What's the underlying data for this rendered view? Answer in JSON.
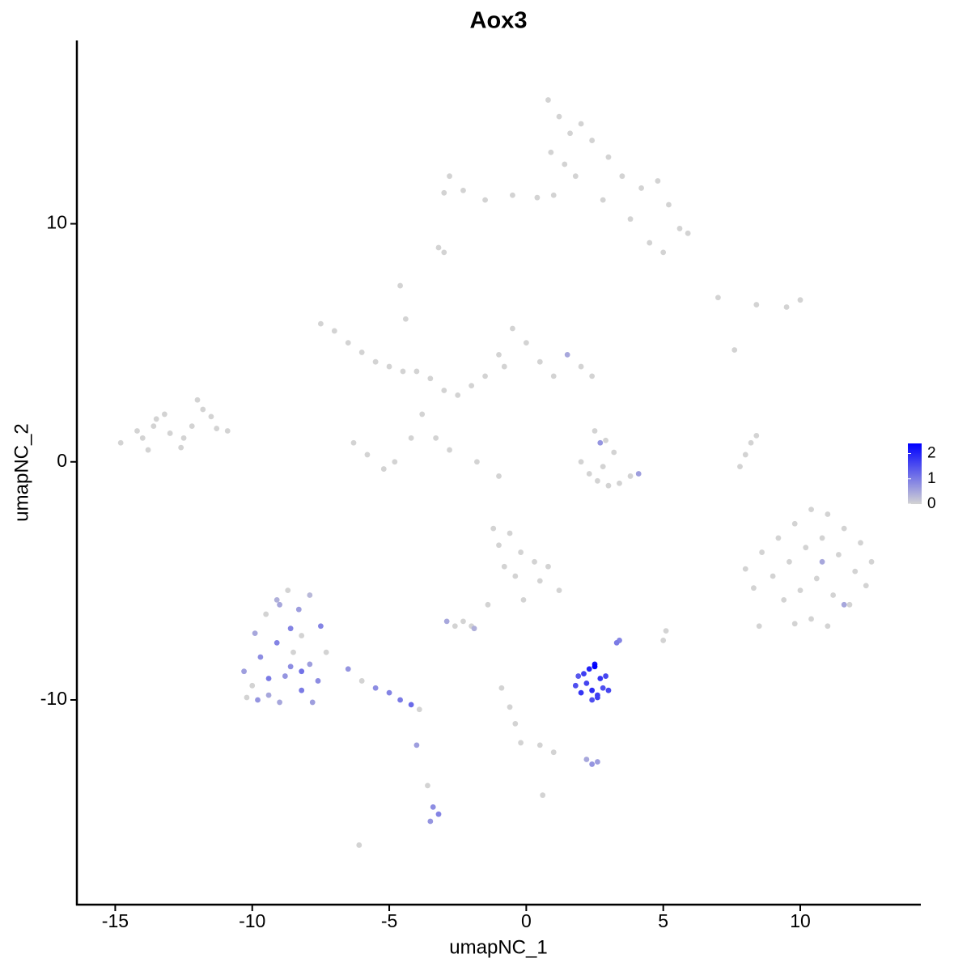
{
  "chart_data": {
    "type": "scatter",
    "title": "Aox3",
    "xlabel": "umapNC_1",
    "ylabel": "umapNC_2",
    "xlim": [
      -16.4,
      14.4
    ],
    "ylim": [
      -18.6,
      17.7
    ],
    "xticks": [
      -15,
      -10,
      -5,
      0,
      5,
      10
    ],
    "yticks": [
      -10,
      0,
      10
    ],
    "color_low": "#d3d3d3",
    "color_high": "#0000ff",
    "clim": [
      0,
      2.4
    ],
    "legend_ticks": [
      0,
      1,
      2
    ],
    "x": [
      -14.8,
      -14.2,
      -13.8,
      -13.5,
      -13.0,
      -12.6,
      -12.2,
      -11.8,
      -11.3,
      -10.9,
      -14.0,
      -13.2,
      -12.5,
      -12.0,
      -11.5,
      -13.6,
      0.8,
      1.2,
      1.6,
      2.0,
      0.9,
      1.4,
      2.4,
      1.8,
      3.0,
      3.5,
      4.2,
      4.8,
      5.2,
      5.6,
      5.9,
      4.5,
      3.8,
      2.8,
      1.0,
      0.4,
      -0.5,
      -1.5,
      -2.3,
      -2.8,
      -3.0,
      5.0,
      -3.0,
      -3.2,
      -7.5,
      -7.0,
      -6.5,
      -6.0,
      -5.5,
      -5.0,
      -4.5,
      -4.0,
      -3.5,
      -3.0,
      -2.5,
      -2.0,
      -1.5,
      -1.0,
      -0.5,
      0,
      0.5,
      1.0,
      1.5,
      2.0,
      2.4,
      -6.3,
      -5.8,
      -5.2,
      -4.8,
      -4.2,
      -3.8,
      -3.3,
      -2.8,
      -1.8,
      -4.6,
      -4.4,
      -1.0,
      -0.8,
      2.0,
      2.3,
      2.6,
      3.0,
      3.4,
      3.8,
      4.1,
      2.7,
      2.5,
      3.2,
      2.9,
      2.8,
      8.0,
      8.6,
      9.2,
      9.8,
      10.4,
      11.0,
      11.6,
      12.2,
      12.6,
      8.3,
      9.0,
      9.6,
      10.2,
      10.8,
      11.4,
      12.0,
      9.4,
      10.0,
      10.6,
      11.2,
      11.8,
      9.8,
      10.4,
      11.0,
      8.5,
      12.4,
      10.8,
      11.6,
      7.0,
      8.4,
      9.5,
      10.0,
      7.6,
      7.8,
      8.0,
      8.2,
      8.4,
      -1.2,
      -1.0,
      -0.6,
      -0.2,
      0.3,
      0.8,
      1.2,
      -0.8,
      -1.4,
      -0.4,
      0.5,
      -0.1,
      -10.3,
      -10.0,
      -9.7,
      -9.4,
      -9.1,
      -8.8,
      -8.5,
      -8.2,
      -7.9,
      -7.6,
      -7.3,
      -9.9,
      -9.5,
      -9.1,
      -8.7,
      -8.3,
      -7.9,
      -7.5,
      -10.2,
      -9.8,
      -9.4,
      -9.0,
      -8.6,
      -8.2,
      -7.8,
      -9.0,
      -8.6,
      -8.2,
      -6.5,
      -6.0,
      -5.5,
      -5.0,
      -4.6,
      -4.2,
      -3.9,
      -4.0,
      -3.6,
      -3.4,
      -3.2,
      -3.5,
      -2.9,
      -2.6,
      -2.3,
      -2.0,
      -1.9,
      1.8,
      2.0,
      2.2,
      2.4,
      2.6,
      2.8,
      3.0,
      1.9,
      2.1,
      2.3,
      2.5,
      2.7,
      2.9,
      2.4,
      2.6,
      2.5,
      3.3,
      3.4,
      -0.9,
      -0.6,
      -0.4,
      -0.2,
      0.5,
      1.0,
      2.2,
      2.4,
      2.6,
      -6.1,
      0.6,
      5.0,
      5.1
    ],
    "y": [
      0.8,
      1.3,
      0.5,
      1.8,
      1.2,
      0.6,
      1.5,
      2.2,
      1.4,
      1.3,
      1.0,
      2.0,
      1.0,
      2.6,
      1.9,
      1.5,
      15.2,
      14.5,
      13.8,
      14.2,
      13.0,
      12.5,
      13.5,
      12.0,
      12.8,
      12.0,
      11.5,
      11.8,
      10.8,
      9.8,
      9.6,
      9.2,
      10.2,
      11.0,
      11.2,
      11.1,
      11.2,
      11.0,
      11.4,
      12.0,
      11.3,
      8.8,
      8.8,
      9.0,
      5.8,
      5.5,
      5.0,
      4.6,
      4.2,
      4.0,
      3.8,
      3.8,
      3.5,
      3.0,
      2.8,
      3.2,
      3.6,
      4.5,
      5.6,
      5.0,
      4.2,
      3.6,
      4.5,
      4.0,
      3.6,
      0.8,
      0.3,
      -0.3,
      0.0,
      1.0,
      2.0,
      1.0,
      0.5,
      0.0,
      7.4,
      6.0,
      -0.6,
      4.0,
      0.0,
      -0.5,
      -0.8,
      -1.0,
      -0.9,
      -0.6,
      -0.5,
      0.8,
      1.3,
      0.4,
      0.9,
      -0.2,
      -4.5,
      -3.8,
      -3.2,
      -2.6,
      -2.0,
      -2.2,
      -2.8,
      -3.4,
      -4.2,
      -5.3,
      -4.8,
      -4.2,
      -3.6,
      -3.2,
      -3.9,
      -4.6,
      -5.8,
      -5.4,
      -4.9,
      -5.6,
      -6.0,
      -6.8,
      -6.6,
      -6.9,
      -6.9,
      -5.2,
      -4.2,
      -6.0,
      6.9,
      6.6,
      6.5,
      6.8,
      4.7,
      -0.2,
      0.3,
      0.8,
      1.1,
      -2.8,
      -3.5,
      -3.0,
      -3.8,
      -4.2,
      -4.4,
      -5.4,
      -4.4,
      -6.0,
      -4.8,
      -5.0,
      -5.8,
      -8.8,
      -9.4,
      -8.2,
      -9.8,
      -7.6,
      -9.0,
      -8.0,
      -9.6,
      -8.5,
      -9.2,
      -8.0,
      -7.2,
      -6.4,
      -5.8,
      -5.4,
      -6.2,
      -5.6,
      -6.9,
      -9.9,
      -10.0,
      -9.1,
      -10.1,
      -8.6,
      -7.3,
      -10.1,
      -6.0,
      -7.0,
      -8.8,
      -8.7,
      -9.2,
      -9.5,
      -9.7,
      -10.0,
      -10.2,
      -10.4,
      -11.9,
      -13.6,
      -14.5,
      -14.8,
      -15.1,
      -6.7,
      -6.9,
      -6.7,
      -6.9,
      -7.0,
      -9.4,
      -9.7,
      -9.3,
      -9.6,
      -9.8,
      -9.5,
      -9.6,
      -9.0,
      -8.9,
      -8.7,
      -8.6,
      -9.1,
      -9.0,
      -10.0,
      -9.9,
      -8.5,
      -7.6,
      -7.5,
      -9.5,
      -10.3,
      -11.0,
      -11.8,
      -11.9,
      -12.2,
      -12.5,
      -12.7,
      -12.6,
      -16.1,
      -14.0,
      -7.5,
      -7.1
    ],
    "values": [
      0,
      0,
      0,
      0,
      0,
      0,
      0,
      0,
      0,
      0,
      0,
      0,
      0,
      0,
      0,
      0,
      0,
      0,
      0,
      0,
      0,
      0,
      0,
      0,
      0,
      0,
      0,
      0,
      0,
      0,
      0,
      0,
      0,
      0,
      0,
      0,
      0,
      0,
      0,
      0,
      0,
      0,
      0,
      0,
      0,
      0,
      0,
      0,
      0,
      0,
      0,
      0,
      0,
      0,
      0,
      0,
      0,
      0,
      0,
      0,
      0,
      0,
      0.5,
      0,
      0,
      0,
      0,
      0,
      0,
      0,
      0,
      0,
      0,
      0,
      0,
      0,
      0,
      0,
      0,
      0,
      0,
      0,
      0,
      0,
      0.6,
      0.7,
      0,
      0,
      0,
      0,
      0,
      0,
      0,
      0,
      0,
      0,
      0,
      0,
      0,
      0,
      0,
      0,
      0,
      0,
      0,
      0,
      0,
      0,
      0,
      0,
      0,
      0,
      0,
      0,
      0,
      0,
      0.5,
      0.5,
      0,
      0,
      0,
      0,
      0,
      0,
      0,
      0,
      0,
      0,
      0,
      0,
      0,
      0,
      0,
      0,
      0,
      0,
      0,
      0,
      0,
      0.6,
      0,
      0.8,
      0.5,
      0.9,
      0.7,
      0,
      1.0,
      0.6,
      0.8,
      0,
      0.5,
      0,
      0.4,
      0,
      0.6,
      0.3,
      0.9,
      0,
      0.7,
      1.0,
      0.5,
      0.8,
      0,
      0.6,
      0.5,
      0.9,
      1.1,
      0.7,
      0,
      0.8,
      0.9,
      1.0,
      1.2,
      0,
      0.6,
      0,
      0.8,
      0.9,
      0.7,
      0.5,
      0,
      0,
      0,
      0.4,
      1.5,
      1.8,
      1.6,
      1.9,
      1.7,
      1.5,
      1.6,
      1.4,
      1.7,
      2.0,
      2.4,
      1.8,
      1.6,
      1.5,
      1.7,
      2.2,
      1.0,
      0.9,
      0,
      0,
      0,
      0,
      0,
      0,
      0.5,
      0.7,
      0.6,
      0,
      0,
      0,
      0
    ]
  }
}
